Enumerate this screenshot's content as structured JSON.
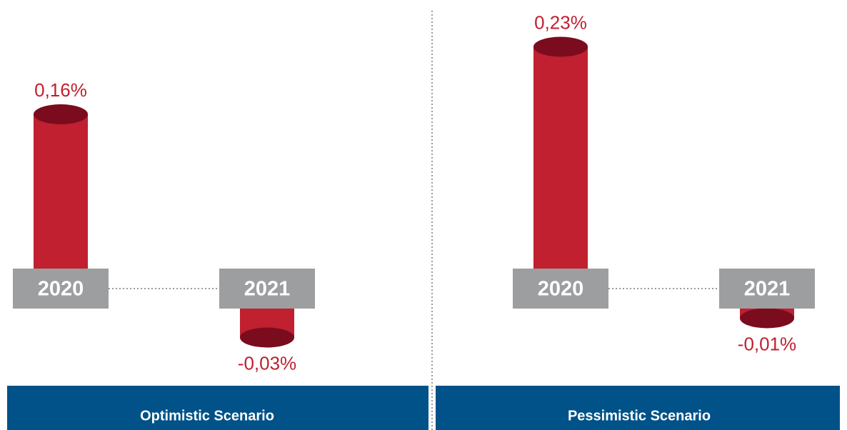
{
  "chart_data": [
    {
      "type": "bar",
      "title": "Optimistic Scenario",
      "categories": [
        "2020",
        "2021"
      ],
      "values": [
        0.16,
        -0.03
      ],
      "value_labels": [
        "0,16%",
        "-0,03%"
      ],
      "color": "#c0202f"
    },
    {
      "type": "bar",
      "title": "Pessimistic Scenario",
      "categories": [
        "2020",
        "2021"
      ],
      "values": [
        0.23,
        -0.01
      ],
      "value_labels": [
        "0,23%",
        "-0,01%"
      ],
      "color": "#c0202f"
    }
  ]
}
